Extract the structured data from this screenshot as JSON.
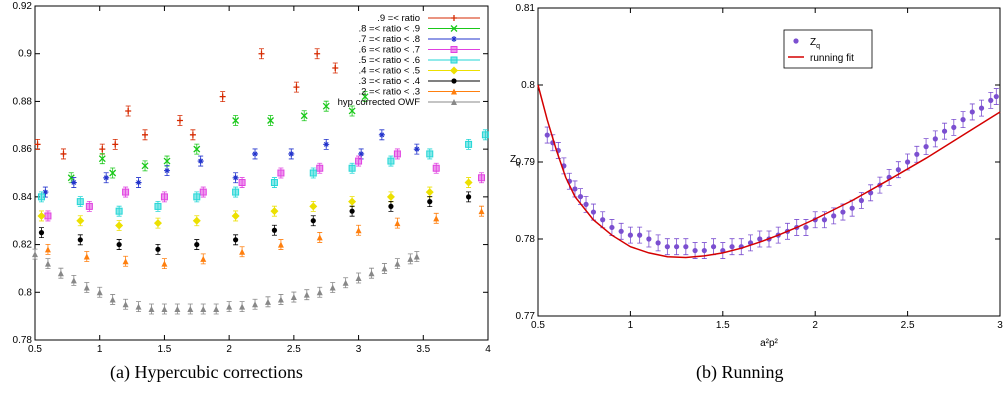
{
  "captions": {
    "a": "(a)  Hypercubic corrections",
    "b": "(b)  Running"
  },
  "chart_data": [
    {
      "type": "scatter",
      "title": "",
      "xlabel": "",
      "ylabel": "",
      "xlim": [
        0.5,
        4
      ],
      "ylim": [
        0.78,
        0.92
      ],
      "xticks": [
        "0.5",
        "1",
        "1.5",
        "2",
        "2.5",
        "3",
        "3.5",
        "4"
      ],
      "yticks": [
        "0.78",
        "0.8",
        "0.82",
        "0.84",
        "0.86",
        "0.88",
        "0.9",
        "0.92"
      ],
      "legend_position": "top-right",
      "series": [
        {
          "name": ".9 =< ratio",
          "color": "#d62a00",
          "marker": "plus",
          "points": [
            [
              0.52,
              0.862
            ],
            [
              0.72,
              0.858
            ],
            [
              1.02,
              0.86
            ],
            [
              1.12,
              0.862
            ],
            [
              1.22,
              0.876
            ],
            [
              1.35,
              0.866
            ],
            [
              1.62,
              0.872
            ],
            [
              1.72,
              0.866
            ],
            [
              1.95,
              0.882
            ],
            [
              2.25,
              0.9
            ],
            [
              2.52,
              0.886
            ],
            [
              2.68,
              0.9
            ],
            [
              2.82,
              0.894
            ]
          ]
        },
        {
          "name": ".8 =< ratio < .9",
          "color": "#19c819",
          "marker": "x",
          "points": [
            [
              0.78,
              0.848
            ],
            [
              1.02,
              0.856
            ],
            [
              1.1,
              0.85
            ],
            [
              1.35,
              0.853
            ],
            [
              1.52,
              0.855
            ],
            [
              1.75,
              0.86
            ],
            [
              2.05,
              0.872
            ],
            [
              2.32,
              0.872
            ],
            [
              2.58,
              0.874
            ],
            [
              2.75,
              0.878
            ],
            [
              2.95,
              0.876
            ],
            [
              3.05,
              0.882
            ]
          ]
        },
        {
          "name": ".7 =< ratio < .8",
          "color": "#2233cc",
          "marker": "asterisk",
          "points": [
            [
              0.58,
              0.842
            ],
            [
              0.8,
              0.846
            ],
            [
              1.05,
              0.848
            ],
            [
              1.3,
              0.846
            ],
            [
              1.52,
              0.851
            ],
            [
              1.78,
              0.855
            ],
            [
              2.05,
              0.848
            ],
            [
              2.2,
              0.858
            ],
            [
              2.48,
              0.858
            ],
            [
              2.75,
              0.862
            ],
            [
              3.02,
              0.858
            ],
            [
              3.18,
              0.866
            ],
            [
              3.45,
              0.86
            ]
          ]
        },
        {
          "name": ".6 =< ratio < .7",
          "color": "#e040e0",
          "marker": "square",
          "points": [
            [
              0.6,
              0.832
            ],
            [
              0.92,
              0.836
            ],
            [
              1.2,
              0.842
            ],
            [
              1.5,
              0.84
            ],
            [
              1.8,
              0.842
            ],
            [
              2.1,
              0.846
            ],
            [
              2.4,
              0.85
            ],
            [
              2.7,
              0.852
            ],
            [
              3.0,
              0.855
            ],
            [
              3.3,
              0.858
            ],
            [
              3.6,
              0.852
            ],
            [
              3.95,
              0.848
            ]
          ]
        },
        {
          "name": ".5 =< ratio < .6",
          "color": "#22d6d6",
          "marker": "square",
          "points": [
            [
              0.55,
              0.84
            ],
            [
              0.85,
              0.838
            ],
            [
              1.15,
              0.834
            ],
            [
              1.45,
              0.836
            ],
            [
              1.75,
              0.84
            ],
            [
              2.05,
              0.842
            ],
            [
              2.35,
              0.846
            ],
            [
              2.65,
              0.85
            ],
            [
              2.95,
              0.852
            ],
            [
              3.25,
              0.855
            ],
            [
              3.55,
              0.858
            ],
            [
              3.85,
              0.862
            ],
            [
              3.98,
              0.866
            ]
          ]
        },
        {
          "name": ".4 =< ratio < .5",
          "color": "#ece000",
          "marker": "diamond",
          "points": [
            [
              0.55,
              0.832
            ],
            [
              0.85,
              0.83
            ],
            [
              1.15,
              0.828
            ],
            [
              1.45,
              0.829
            ],
            [
              1.75,
              0.83
            ],
            [
              2.05,
              0.832
            ],
            [
              2.35,
              0.834
            ],
            [
              2.65,
              0.836
            ],
            [
              2.95,
              0.838
            ],
            [
              3.25,
              0.84
            ],
            [
              3.55,
              0.842
            ],
            [
              3.85,
              0.846
            ]
          ]
        },
        {
          "name": ".3 =< ratio < .4",
          "color": "#000000",
          "marker": "circle",
          "points": [
            [
              0.55,
              0.825
            ],
            [
              0.85,
              0.822
            ],
            [
              1.15,
              0.82
            ],
            [
              1.45,
              0.818
            ],
            [
              1.75,
              0.82
            ],
            [
              2.05,
              0.822
            ],
            [
              2.35,
              0.826
            ],
            [
              2.65,
              0.83
            ],
            [
              2.95,
              0.834
            ],
            [
              3.25,
              0.836
            ],
            [
              3.55,
              0.838
            ],
            [
              3.85,
              0.84
            ]
          ]
        },
        {
          "name": ".2 =< ratio < .3",
          "color": "#ff7f0e",
          "marker": "triangle",
          "points": [
            [
              0.6,
              0.818
            ],
            [
              0.9,
              0.815
            ],
            [
              1.2,
              0.813
            ],
            [
              1.5,
              0.812
            ],
            [
              1.8,
              0.814
            ],
            [
              2.1,
              0.817
            ],
            [
              2.4,
              0.82
            ],
            [
              2.7,
              0.823
            ],
            [
              3.0,
              0.826
            ],
            [
              3.3,
              0.829
            ],
            [
              3.6,
              0.831
            ],
            [
              3.95,
              0.834
            ]
          ]
        },
        {
          "name": "hyp corrected OWF",
          "color": "#888888",
          "marker": "triangle",
          "points": [
            [
              0.5,
              0.816
            ],
            [
              0.6,
              0.812
            ],
            [
              0.7,
              0.808
            ],
            [
              0.8,
              0.805
            ],
            [
              0.9,
              0.802
            ],
            [
              1.0,
              0.8
            ],
            [
              1.1,
              0.797
            ],
            [
              1.2,
              0.795
            ],
            [
              1.3,
              0.794
            ],
            [
              1.4,
              0.793
            ],
            [
              1.5,
              0.793
            ],
            [
              1.6,
              0.793
            ],
            [
              1.7,
              0.793
            ],
            [
              1.8,
              0.793
            ],
            [
              1.9,
              0.793
            ],
            [
              2.0,
              0.794
            ],
            [
              2.1,
              0.794
            ],
            [
              2.2,
              0.795
            ],
            [
              2.3,
              0.796
            ],
            [
              2.4,
              0.797
            ],
            [
              2.5,
              0.798
            ],
            [
              2.6,
              0.799
            ],
            [
              2.7,
              0.8
            ],
            [
              2.8,
              0.802
            ],
            [
              2.9,
              0.804
            ],
            [
              3.0,
              0.806
            ],
            [
              3.1,
              0.808
            ],
            [
              3.2,
              0.81
            ],
            [
              3.3,
              0.812
            ],
            [
              3.4,
              0.814
            ],
            [
              3.45,
              0.815
            ]
          ]
        }
      ]
    },
    {
      "type": "scatter",
      "title": "",
      "xlabel": "a²p²",
      "ylabel": "Z_q",
      "xlim": [
        0.5,
        3.0
      ],
      "ylim": [
        0.77,
        0.81
      ],
      "xticks": [
        "0.5",
        "1",
        "1.5",
        "2",
        "2.5",
        "3"
      ],
      "yticks": [
        "0.77",
        "0.78",
        "0.79",
        "0.8",
        "0.81"
      ],
      "legend_position": "top-center",
      "series": [
        {
          "name": "Z_q",
          "color": "#7b4fd0",
          "marker": "circle",
          "points": [
            [
              0.55,
              0.7935
            ],
            [
              0.58,
              0.7925
            ],
            [
              0.61,
              0.7915
            ],
            [
              0.64,
              0.7895
            ],
            [
              0.67,
              0.7875
            ],
            [
              0.7,
              0.7865
            ],
            [
              0.73,
              0.7855
            ],
            [
              0.76,
              0.7845
            ],
            [
              0.8,
              0.7835
            ],
            [
              0.85,
              0.7825
            ],
            [
              0.9,
              0.7815
            ],
            [
              0.95,
              0.781
            ],
            [
              1.0,
              0.7805
            ],
            [
              1.05,
              0.7805
            ],
            [
              1.1,
              0.78
            ],
            [
              1.15,
              0.7795
            ],
            [
              1.2,
              0.779
            ],
            [
              1.25,
              0.779
            ],
            [
              1.3,
              0.779
            ],
            [
              1.35,
              0.7785
            ],
            [
              1.4,
              0.7785
            ],
            [
              1.45,
              0.779
            ],
            [
              1.5,
              0.7785
            ],
            [
              1.55,
              0.779
            ],
            [
              1.6,
              0.779
            ],
            [
              1.65,
              0.7795
            ],
            [
              1.7,
              0.78
            ],
            [
              1.75,
              0.78
            ],
            [
              1.8,
              0.7805
            ],
            [
              1.85,
              0.781
            ],
            [
              1.9,
              0.7815
            ],
            [
              1.95,
              0.7815
            ],
            [
              2.0,
              0.7825
            ],
            [
              2.05,
              0.7825
            ],
            [
              2.1,
              0.783
            ],
            [
              2.15,
              0.7835
            ],
            [
              2.2,
              0.784
            ],
            [
              2.25,
              0.785
            ],
            [
              2.3,
              0.786
            ],
            [
              2.35,
              0.787
            ],
            [
              2.4,
              0.788
            ],
            [
              2.45,
              0.789
            ],
            [
              2.5,
              0.79
            ],
            [
              2.55,
              0.791
            ],
            [
              2.6,
              0.792
            ],
            [
              2.65,
              0.793
            ],
            [
              2.7,
              0.794
            ],
            [
              2.75,
              0.7945
            ],
            [
              2.8,
              0.7955
            ],
            [
              2.85,
              0.7965
            ],
            [
              2.9,
              0.797
            ],
            [
              2.95,
              0.798
            ],
            [
              2.98,
              0.7985
            ]
          ]
        },
        {
          "name": "running fit",
          "color": "#d40000",
          "marker": "line",
          "points": [
            [
              0.5,
              0.8
            ],
            [
              0.55,
              0.7955
            ],
            [
              0.6,
              0.7915
            ],
            [
              0.65,
              0.788
            ],
            [
              0.7,
              0.7855
            ],
            [
              0.8,
              0.7825
            ],
            [
              0.9,
              0.7805
            ],
            [
              1.0,
              0.779
            ],
            [
              1.1,
              0.7782
            ],
            [
              1.2,
              0.7777
            ],
            [
              1.3,
              0.7776
            ],
            [
              1.4,
              0.7778
            ],
            [
              1.5,
              0.7782
            ],
            [
              1.6,
              0.7788
            ],
            [
              1.7,
              0.7796
            ],
            [
              1.8,
              0.7805
            ],
            [
              1.9,
              0.7815
            ],
            [
              2.0,
              0.7826
            ],
            [
              2.2,
              0.785
            ],
            [
              2.4,
              0.7877
            ],
            [
              2.6,
              0.7905
            ],
            [
              2.8,
              0.7935
            ],
            [
              3.0,
              0.7965
            ]
          ]
        }
      ]
    }
  ]
}
